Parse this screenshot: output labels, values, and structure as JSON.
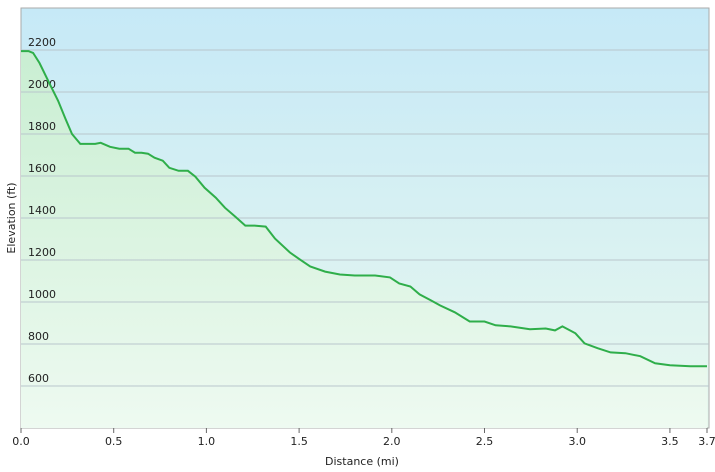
{
  "chart_data": {
    "type": "area",
    "x_label": "Distance  (mi)",
    "y_label": "Elevation (ft)",
    "xlim": [
      0,
      3.7
    ],
    "ylim": [
      400,
      2400
    ],
    "xticks": [
      {
        "value": 0,
        "label": "0.0"
      },
      0.5,
      {
        "value": 1,
        "label": "1.0"
      },
      1.5,
      {
        "value": 2,
        "label": "2.0"
      },
      2.5,
      {
        "value": 3,
        "label": "3.0"
      },
      3.5,
      3.7
    ],
    "yticks": [
      600,
      800,
      1000,
      1200,
      1400,
      1600,
      1800,
      2000,
      2200
    ],
    "grid": true,
    "color": "#2fae4a",
    "x": [
      0,
      0.04,
      0.065,
      0.1,
      0.16,
      0.2,
      0.24,
      0.275,
      0.32,
      0.4,
      0.43,
      0.48,
      0.53,
      0.58,
      0.615,
      0.65,
      0.685,
      0.72,
      0.765,
      0.8,
      0.85,
      0.9,
      0.94,
      0.99,
      1.05,
      1.1,
      1.155,
      1.21,
      1.26,
      1.32,
      1.37,
      1.45,
      1.505,
      1.56,
      1.64,
      1.72,
      1.8,
      1.91,
      1.99,
      2.04,
      2.1,
      2.15,
      2.21,
      2.26,
      2.34,
      2.42,
      2.5,
      2.56,
      2.64,
      2.745,
      2.83,
      2.88,
      2.92,
      2.99,
      3.04,
      3.11,
      3.18,
      3.26,
      3.34,
      3.42,
      3.5,
      3.61,
      3.66,
      3.7
    ],
    "values": [
      2195,
      2195,
      2186,
      2138,
      2029,
      1958,
      1872,
      1800,
      1753,
      1753,
      1758,
      1739,
      1730,
      1730,
      1711,
      1711,
      1706,
      1687,
      1673,
      1639,
      1625,
      1625,
      1597,
      1544,
      1497,
      1449,
      1407,
      1364,
      1364,
      1359,
      1302,
      1236,
      1202,
      1169,
      1145,
      1131,
      1126,
      1126,
      1117,
      1088,
      1074,
      1036,
      1008,
      984,
      951,
      907,
      907,
      889,
      884,
      870,
      874,
      865,
      884,
      851,
      803,
      780,
      760,
      756,
      742,
      708,
      699,
      694,
      694,
      694
    ]
  }
}
